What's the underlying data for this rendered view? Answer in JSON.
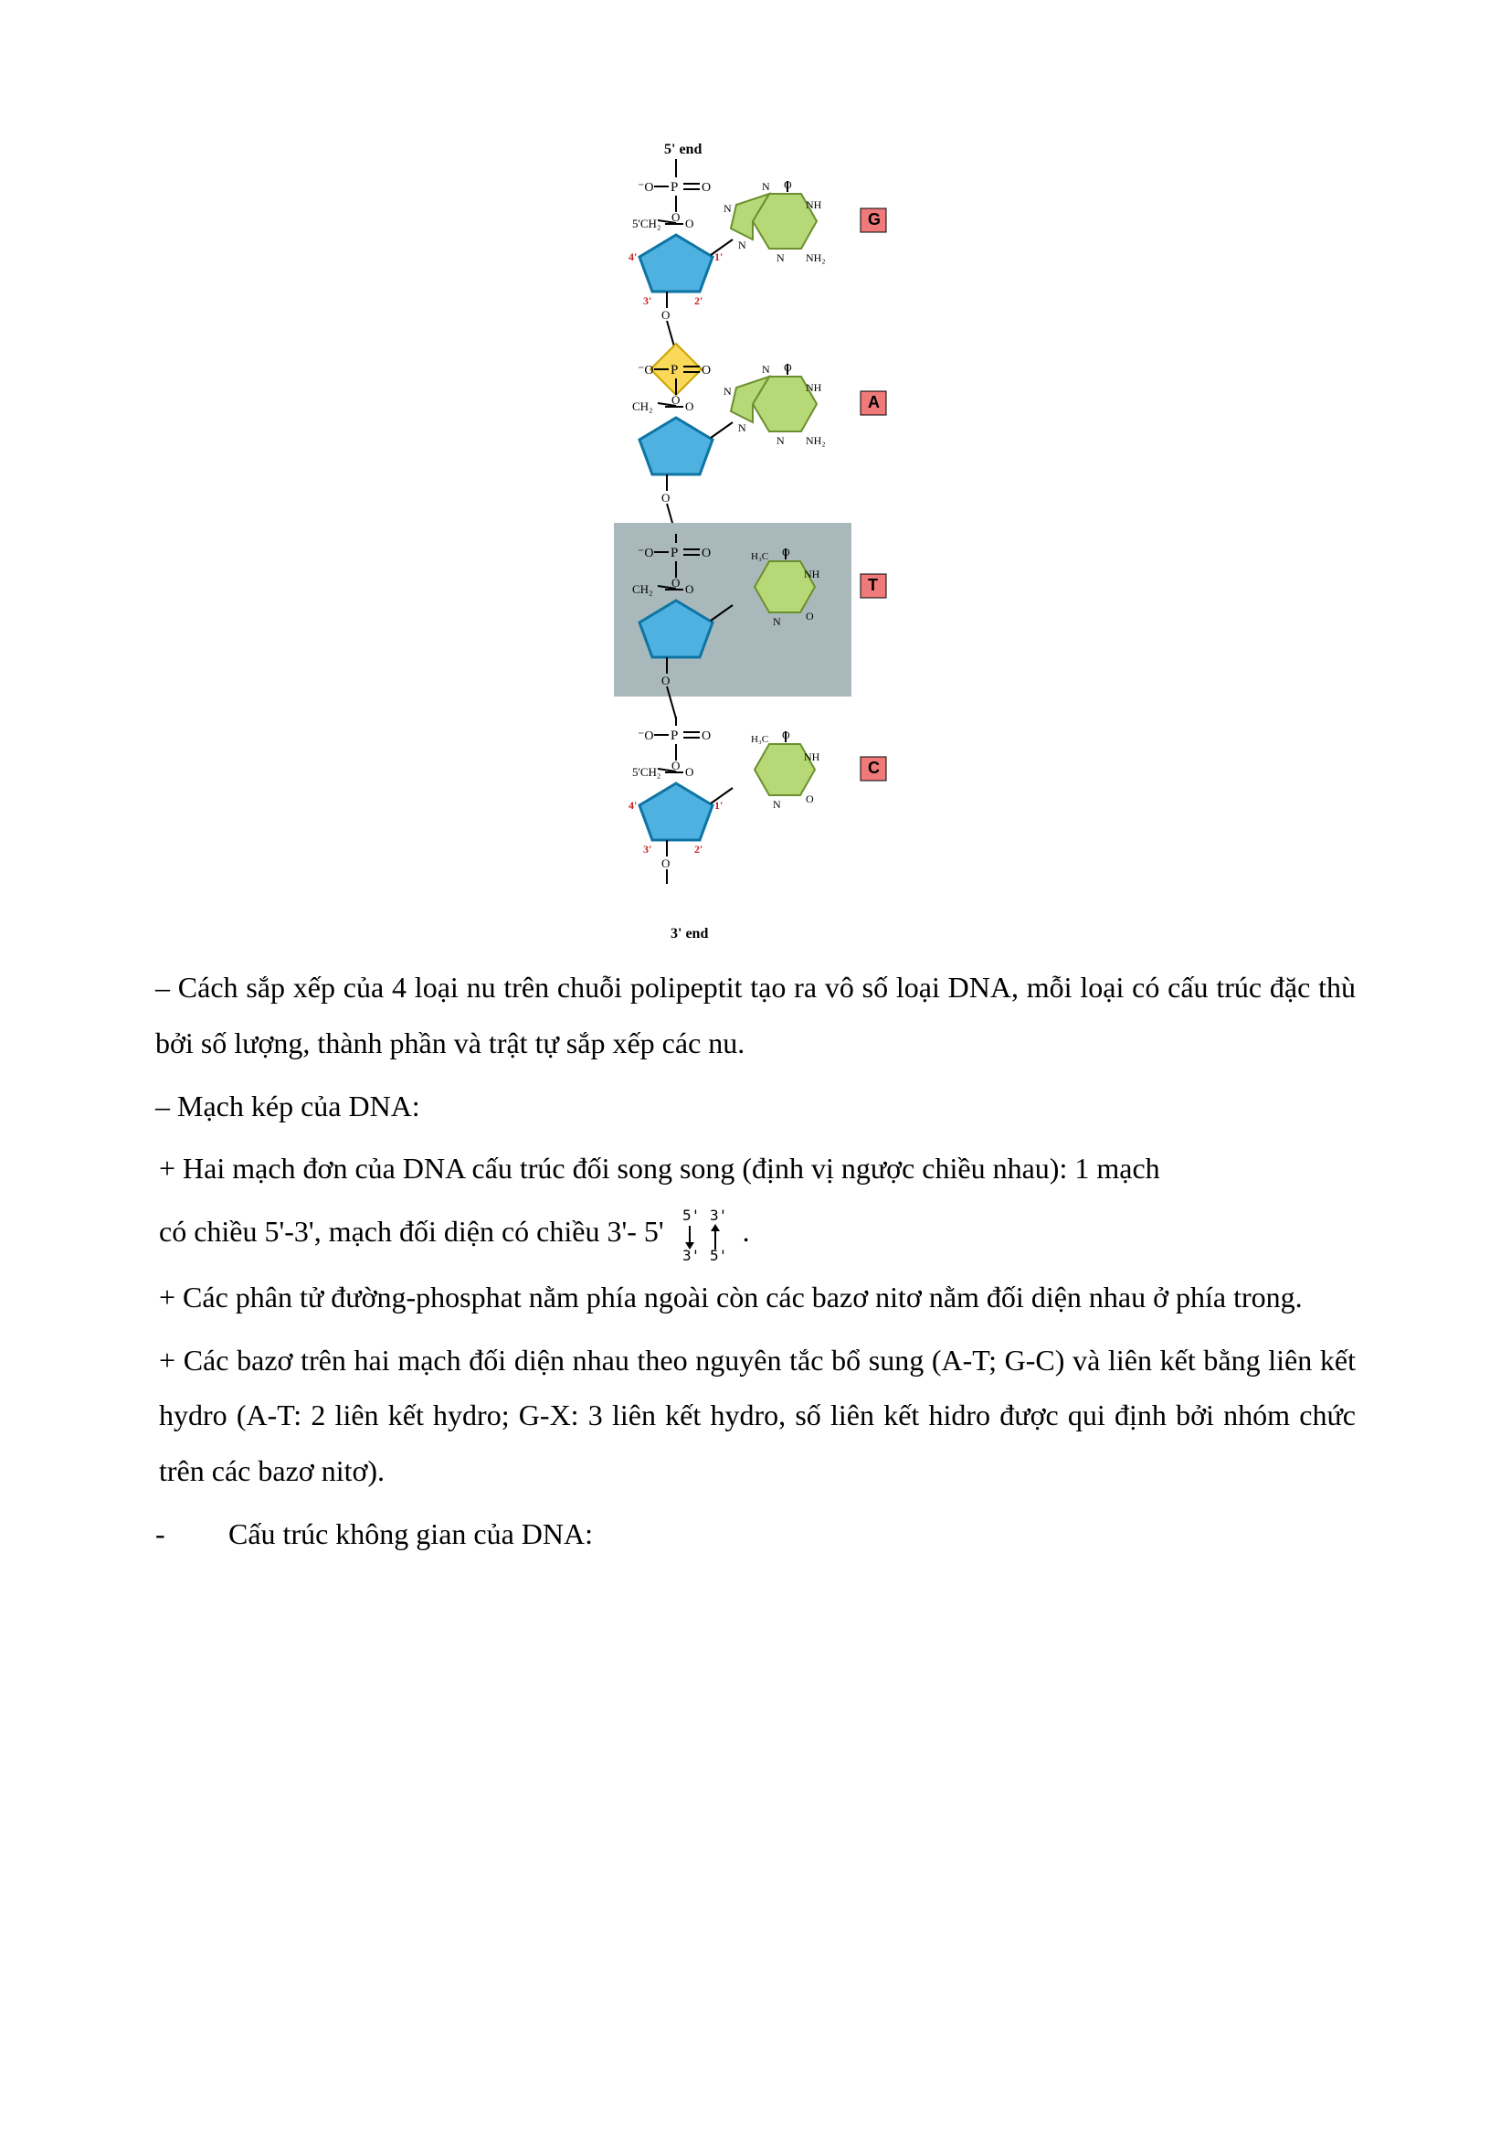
{
  "diagram": {
    "top_label": "5' end",
    "bottom_label": "3' end",
    "sugar_fill": "#4fb1e0",
    "sugar_stroke": "#0d74a4",
    "p_diamond_fill": "#f9d85a",
    "p_diamond_stroke": "#c9a300",
    "base_fill": "#b6d877",
    "base_stroke": "#6b8f2e",
    "t_panel_fill": "#a9b9bb",
    "label_bg": "#f07a7a",
    "label_color": "#000000",
    "text_color": "#000000",
    "red_text": "#cc1f1f",
    "nucleotides": [
      {
        "letter": "G",
        "panel": false,
        "base": "purine"
      },
      {
        "letter": "A",
        "panel": false,
        "base": "purine"
      },
      {
        "letter": "T",
        "panel": true,
        "base": "pyrimidine"
      },
      {
        "letter": "C",
        "panel": false,
        "base": "pyrimidine"
      }
    ]
  },
  "paragraphs": {
    "p1": "– Cách sắp xếp của 4 loại nu trên chuỗi polipeptit tạo ra vô số loại DNA, mỗi loại có cấu trúc đặc thù bởi số lượng, thành phần và trật tự sắp xếp các nu.",
    "p2": "– Mạch kép của DNA:",
    "p3a": " + Hai mạch đơn của DNA cấu trúc đối song song (định vị ngược chiều nhau): 1 mạch",
    "p3b_prefix": "có chiều 5'-3', mạch đối diện có chiều 3'- 5' ",
    "p3b_suffix": " .",
    "p4": " + Các phân tử đường-phosphat nằm phía ngoài còn các bazơ nitơ nằm đối diện nhau ở phía trong.",
    "p5": " + Các bazơ trên hai mạch đối diện nhau theo nguyên tắc bổ sung (A-T; G-C) và liên kết bằng liên kết hydro (A-T: 2 liên kết hydro; G-X: 3 liên kết hydro, số liên kết hidro được qui định bởi nhóm chức trên các bazơ nitơ).",
    "p6_dash": "-",
    "p6_text": "Cấu trúc không gian của DNA:"
  },
  "arrows": {
    "top_left": "5'",
    "top_right": "3'",
    "bot_left": "3'",
    "bot_right": "5'"
  }
}
